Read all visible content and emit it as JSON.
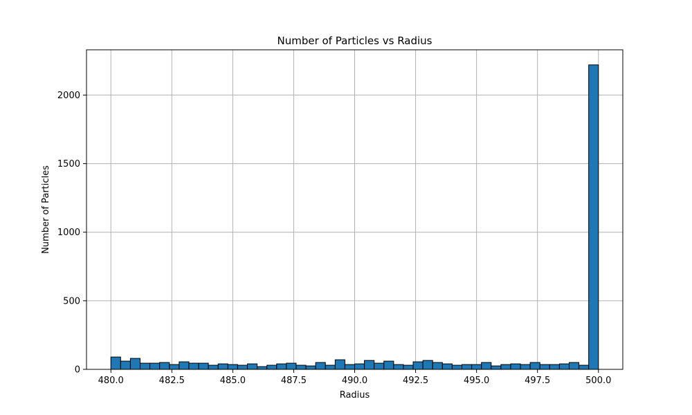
{
  "chart_data": {
    "type": "bar",
    "title": "Number of Particles vs Radius",
    "xlabel": "Radius",
    "ylabel": "Number of Particles",
    "xlim": [
      479.0,
      501.0
    ],
    "ylim": [
      0,
      2330
    ],
    "x_ticks": [
      480.0,
      482.5,
      485.0,
      487.5,
      490.0,
      492.5,
      495.0,
      497.5,
      500.0
    ],
    "x_tick_labels": [
      "480.0",
      "482.5",
      "485.0",
      "487.5",
      "490.0",
      "492.5",
      "495.0",
      "497.5",
      "500.0"
    ],
    "y_ticks": [
      0,
      500,
      1000,
      1500,
      2000
    ],
    "y_tick_labels": [
      "0",
      "500",
      "1000",
      "1500",
      "2000"
    ],
    "grid": true,
    "bin_start": 480.0,
    "bin_width": 0.4,
    "values": [
      90,
      60,
      80,
      45,
      45,
      50,
      35,
      55,
      45,
      45,
      30,
      40,
      35,
      30,
      40,
      20,
      30,
      40,
      45,
      30,
      25,
      50,
      30,
      70,
      35,
      40,
      65,
      45,
      60,
      35,
      30,
      55,
      65,
      50,
      40,
      30,
      35,
      35,
      50,
      25,
      35,
      40,
      35,
      50,
      35,
      35,
      40,
      50,
      30,
      2220
    ],
    "colors": {
      "bar_fill": "#1f77b4",
      "bar_edge": "#000000",
      "grid": "#b0b0b0",
      "axis": "#000000"
    }
  }
}
